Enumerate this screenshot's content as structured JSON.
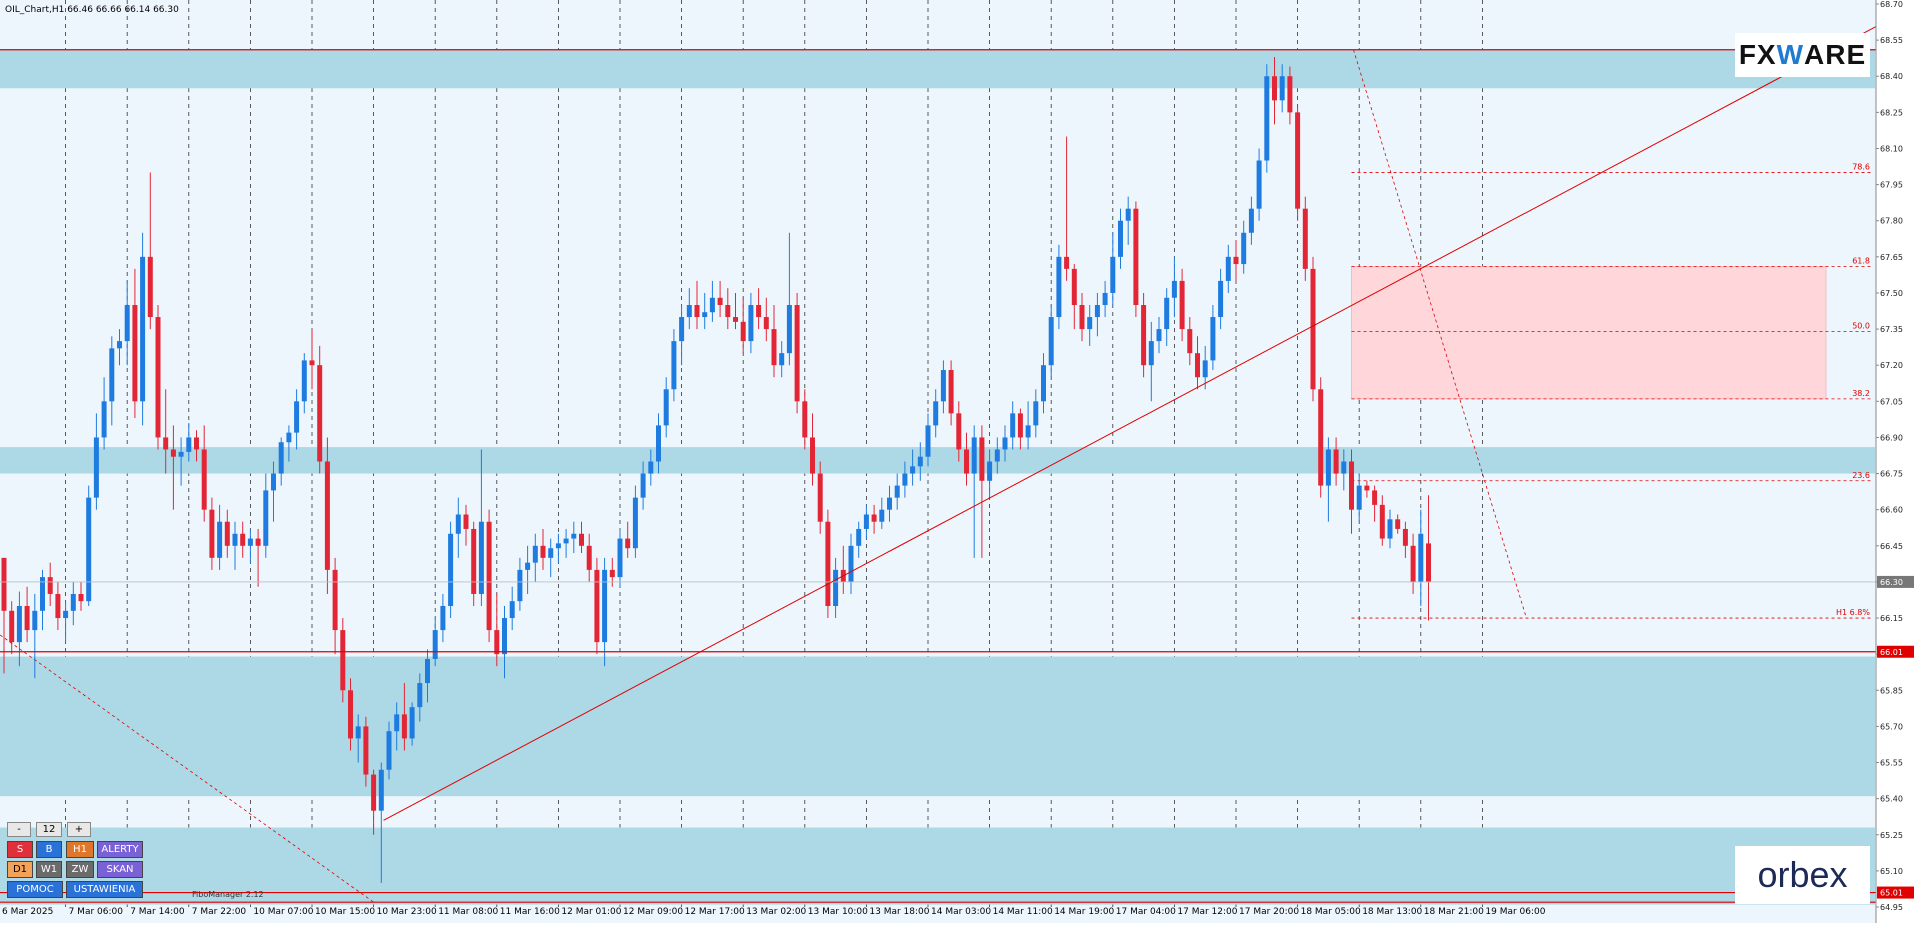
{
  "header": {
    "info": "OIL_Chart,H1  66.46 66.66 66.14 66.30"
  },
  "footer": {
    "fibo_manager": "FiboManager 2.12"
  },
  "brands": {
    "fxware_left": "FX",
    "fxware_mid": "W",
    "fxware_right": "ARE",
    "orbex": "orbex"
  },
  "controls": {
    "minus": "-",
    "count": "12",
    "plus": "+",
    "row1": [
      "S",
      "B",
      "H1",
      "ALERTY"
    ],
    "row2": [
      "D1",
      "W1",
      "ZW",
      "SKAN"
    ],
    "row3": [
      "POMOC",
      "USTAWIENIA"
    ]
  },
  "colors": {
    "bull": "#1e7be0",
    "bear": "#e32636",
    "zone": "#add8e6",
    "fibo_zone": "#ffd6da",
    "line": "#e00000",
    "grid": "#333333",
    "bg": "#eef6fd"
  },
  "chart_data": {
    "type": "candlestick",
    "symbol": "OIL",
    "timeframe": "H1",
    "ylim": [
      64.95,
      68.7
    ],
    "y_ticks": [
      68.7,
      68.55,
      68.4,
      68.25,
      68.1,
      67.95,
      67.8,
      67.65,
      67.5,
      67.35,
      67.2,
      67.05,
      66.9,
      66.75,
      66.6,
      66.45,
      66.3,
      66.15,
      66.0,
      65.85,
      65.7,
      65.55,
      65.4,
      65.25,
      65.1,
      64.95
    ],
    "x_ticks": [
      "6 Mar 2025",
      "7 Mar 06:00",
      "7 Mar 14:00",
      "7 Mar 22:00",
      "10 Mar 07:00",
      "10 Mar 15:00",
      "10 Mar 23:00",
      "11 Mar 08:00",
      "11 Mar 16:00",
      "12 Mar 01:00",
      "12 Mar 09:00",
      "12 Mar 17:00",
      "13 Mar 02:00",
      "13 Mar 10:00",
      "13 Mar 18:00",
      "14 Mar 03:00",
      "14 Mar 11:00",
      "14 Mar 19:00",
      "17 Mar 04:00",
      "17 Mar 12:00",
      "17 Mar 20:00",
      "18 Mar 05:00",
      "18 Mar 13:00",
      "18 Mar 21:00",
      "19 Mar 06:00"
    ],
    "current_price": "66.30",
    "price_labels": [
      "66.01",
      "65.01"
    ],
    "horizontal_lines": [
      68.51,
      66.01,
      65.01,
      64.97
    ],
    "support_resistance_zones": [
      [
        68.35,
        68.51
      ],
      [
        66.75,
        66.86
      ],
      [
        65.41,
        65.99
      ],
      [
        64.96,
        65.28
      ]
    ],
    "trendline": {
      "from": [
        "10 Mar 23:00",
        65.31
      ],
      "to": [
        "19 Mar 06:00",
        67.98
      ]
    },
    "fibonacci": {
      "levels": [
        {
          "label": "78.6",
          "price": 68.0
        },
        {
          "label": "61.8",
          "price": 67.61
        },
        {
          "label": "50.0",
          "price": 67.34
        },
        {
          "label": "38.2",
          "price": 67.06
        },
        {
          "label": "23.6",
          "price": 66.72
        },
        {
          "label": "H1 6.8%",
          "price": 66.15
        }
      ],
      "zone": [
        67.06,
        67.61
      ],
      "swing_high": 68.51,
      "swing_low": 66.15
    },
    "candles_ohlc": [
      [
        66.4,
        66.28,
        65.92,
        66.18
      ],
      [
        66.18,
        66.22,
        66.0,
        66.05
      ],
      [
        66.05,
        66.26,
        65.95,
        66.2
      ],
      [
        66.2,
        66.28,
        66.05,
        66.1
      ],
      [
        66.1,
        66.25,
        65.9,
        66.18
      ],
      [
        66.18,
        66.35,
        66.1,
        66.32
      ],
      [
        66.32,
        66.38,
        66.2,
        66.25
      ],
      [
        66.25,
        66.3,
        66.1,
        66.15
      ],
      [
        66.15,
        66.22,
        66.05,
        66.18
      ],
      [
        66.18,
        66.3,
        66.12,
        66.25
      ],
      [
        66.25,
        66.3,
        66.18,
        66.22
      ],
      [
        66.22,
        66.7,
        66.2,
        66.65
      ],
      [
        66.65,
        67.0,
        66.6,
        66.9
      ],
      [
        66.9,
        67.15,
        66.85,
        67.05
      ],
      [
        67.05,
        67.32,
        66.95,
        67.27
      ],
      [
        67.27,
        67.35,
        67.2,
        67.3
      ],
      [
        67.3,
        67.55,
        67.2,
        67.45
      ],
      [
        67.45,
        67.6,
        66.98,
        67.05
      ],
      [
        67.05,
        67.75,
        66.95,
        67.65
      ],
      [
        67.65,
        68.0,
        67.35,
        67.4
      ],
      [
        67.4,
        67.45,
        66.85,
        66.9
      ],
      [
        66.9,
        67.1,
        66.75,
        66.85
      ],
      [
        66.85,
        66.95,
        66.6,
        66.82
      ],
      [
        66.82,
        66.9,
        66.7,
        66.84
      ],
      [
        66.84,
        66.96,
        66.8,
        66.9
      ],
      [
        66.9,
        66.93,
        66.8,
        66.85
      ],
      [
        66.85,
        66.95,
        66.55,
        66.6
      ],
      [
        66.6,
        66.65,
        66.35,
        66.4
      ],
      [
        66.4,
        66.62,
        66.35,
        66.55
      ],
      [
        66.55,
        66.6,
        66.4,
        66.45
      ],
      [
        66.45,
        66.55,
        66.35,
        66.5
      ],
      [
        66.5,
        66.55,
        66.4,
        66.45
      ],
      [
        66.45,
        66.52,
        66.38,
        66.48
      ],
      [
        66.48,
        66.52,
        66.28,
        66.45
      ],
      [
        66.45,
        66.75,
        66.4,
        66.68
      ],
      [
        66.68,
        66.8,
        66.55,
        66.75
      ],
      [
        66.75,
        66.9,
        66.7,
        66.88
      ],
      [
        66.88,
        66.95,
        66.8,
        66.92
      ],
      [
        66.92,
        67.1,
        66.85,
        67.05
      ],
      [
        67.05,
        67.25,
        67.0,
        67.22
      ],
      [
        67.22,
        67.35,
        67.1,
        67.2
      ],
      [
        67.2,
        67.28,
        66.75,
        66.8
      ],
      [
        66.8,
        66.9,
        66.25,
        66.35
      ],
      [
        66.35,
        66.4,
        66.0,
        66.1
      ],
      [
        66.1,
        66.15,
        65.8,
        65.85
      ],
      [
        65.85,
        65.9,
        65.6,
        65.65
      ],
      [
        65.65,
        65.75,
        65.55,
        65.7
      ],
      [
        65.7,
        65.74,
        65.45,
        65.5
      ],
      [
        65.5,
        65.52,
        65.25,
        65.35
      ],
      [
        65.35,
        65.55,
        65.05,
        65.52
      ],
      [
        65.52,
        65.72,
        65.48,
        65.68
      ],
      [
        65.68,
        65.8,
        65.6,
        65.75
      ],
      [
        65.75,
        65.88,
        65.6,
        65.65
      ],
      [
        65.65,
        65.8,
        65.62,
        65.78
      ],
      [
        65.78,
        65.92,
        65.72,
        65.88
      ],
      [
        65.88,
        66.02,
        65.8,
        65.98
      ],
      [
        65.98,
        66.15,
        65.95,
        66.1
      ],
      [
        66.1,
        66.25,
        66.05,
        66.2
      ],
      [
        66.2,
        66.55,
        66.15,
        66.5
      ],
      [
        66.5,
        66.65,
        66.4,
        66.58
      ],
      [
        66.58,
        66.62,
        66.45,
        66.52
      ],
      [
        66.52,
        66.55,
        66.2,
        66.25
      ],
      [
        66.25,
        66.85,
        66.2,
        66.55
      ],
      [
        66.55,
        66.6,
        66.05,
        66.1
      ],
      [
        66.1,
        66.25,
        65.95,
        66.0
      ],
      [
        66.0,
        66.2,
        65.9,
        66.15
      ],
      [
        66.15,
        66.28,
        66.1,
        66.22
      ],
      [
        66.22,
        66.4,
        66.18,
        66.35
      ],
      [
        66.35,
        66.45,
        66.25,
        66.38
      ],
      [
        66.38,
        66.5,
        66.3,
        66.45
      ],
      [
        66.45,
        66.52,
        66.35,
        66.4
      ],
      [
        66.4,
        66.48,
        66.32,
        66.44
      ],
      [
        66.44,
        66.5,
        66.38,
        66.46
      ],
      [
        66.46,
        66.52,
        66.4,
        66.48
      ],
      [
        66.48,
        66.55,
        66.42,
        66.5
      ],
      [
        66.5,
        66.55,
        66.42,
        66.45
      ],
      [
        66.45,
        66.5,
        66.3,
        66.35
      ],
      [
        66.35,
        66.4,
        66.0,
        66.05
      ],
      [
        66.05,
        66.4,
        65.95,
        66.35
      ],
      [
        66.35,
        66.4,
        66.28,
        66.32
      ],
      [
        66.32,
        66.52,
        66.28,
        66.48
      ],
      [
        66.48,
        66.55,
        66.4,
        66.44
      ],
      [
        66.44,
        66.7,
        66.4,
        66.65
      ],
      [
        66.65,
        66.8,
        66.6,
        66.75
      ],
      [
        66.75,
        66.85,
        66.7,
        66.8
      ],
      [
        66.8,
        67.0,
        66.75,
        66.95
      ],
      [
        66.95,
        67.15,
        66.9,
        67.1
      ],
      [
        67.1,
        67.35,
        67.05,
        67.3
      ],
      [
        67.3,
        67.45,
        67.2,
        67.4
      ],
      [
        67.4,
        67.52,
        67.35,
        67.45
      ],
      [
        67.45,
        67.55,
        67.35,
        67.4
      ],
      [
        67.4,
        67.5,
        67.35,
        67.42
      ],
      [
        67.42,
        67.55,
        67.38,
        67.48
      ],
      [
        67.48,
        67.55,
        67.4,
        67.45
      ],
      [
        67.45,
        67.52,
        67.35,
        67.4
      ],
      [
        67.4,
        67.5,
        67.35,
        67.38
      ],
      [
        67.38,
        67.48,
        67.25,
        67.3
      ],
      [
        67.3,
        67.5,
        67.25,
        67.45
      ],
      [
        67.45,
        67.52,
        67.35,
        67.4
      ],
      [
        67.4,
        67.48,
        67.3,
        67.35
      ],
      [
        67.35,
        67.45,
        67.15,
        67.2
      ],
      [
        67.2,
        67.3,
        67.15,
        67.25
      ],
      [
        67.25,
        67.75,
        67.2,
        67.45
      ],
      [
        67.45,
        67.5,
        67.0,
        67.05
      ],
      [
        67.05,
        67.1,
        66.85,
        66.9
      ],
      [
        66.9,
        67.0,
        66.7,
        66.75
      ],
      [
        66.75,
        66.8,
        66.5,
        66.55
      ],
      [
        66.55,
        66.6,
        66.15,
        66.2
      ],
      [
        66.2,
        66.4,
        66.15,
        66.35
      ],
      [
        66.35,
        66.45,
        66.25,
        66.3
      ],
      [
        66.3,
        66.5,
        66.25,
        66.45
      ],
      [
        66.45,
        66.55,
        66.4,
        66.52
      ],
      [
        66.52,
        66.62,
        66.48,
        66.58
      ],
      [
        66.58,
        66.62,
        66.5,
        66.55
      ],
      [
        66.55,
        66.65,
        66.52,
        66.6
      ],
      [
        66.6,
        66.7,
        66.55,
        66.65
      ],
      [
        66.65,
        66.75,
        66.6,
        66.7
      ],
      [
        66.7,
        66.8,
        66.65,
        66.75
      ],
      [
        66.75,
        66.85,
        66.7,
        66.78
      ],
      [
        66.78,
        66.88,
        66.72,
        66.82
      ],
      [
        66.82,
        67.0,
        66.78,
        66.95
      ],
      [
        66.95,
        67.1,
        66.9,
        67.05
      ],
      [
        67.05,
        67.22,
        67.0,
        67.18
      ],
      [
        67.18,
        67.22,
        66.95,
        67.0
      ],
      [
        67.0,
        67.05,
        66.8,
        66.85
      ],
      [
        66.85,
        66.92,
        66.7,
        66.75
      ],
      [
        66.75,
        66.95,
        66.4,
        66.9
      ],
      [
        66.9,
        66.95,
        66.4,
        66.72
      ],
      [
        66.72,
        66.85,
        66.65,
        66.8
      ],
      [
        66.8,
        66.9,
        66.75,
        66.85
      ],
      [
        66.85,
        66.95,
        66.8,
        66.9
      ],
      [
        66.9,
        67.05,
        66.85,
        67.0
      ],
      [
        67.0,
        67.02,
        66.85,
        66.9
      ],
      [
        66.9,
        67.05,
        66.85,
        66.95
      ],
      [
        66.95,
        67.1,
        66.9,
        67.05
      ],
      [
        67.05,
        67.25,
        67.0,
        67.2
      ],
      [
        67.2,
        67.45,
        67.15,
        67.4
      ],
      [
        67.4,
        67.7,
        67.35,
        67.65
      ],
      [
        67.65,
        68.15,
        67.55,
        67.6
      ],
      [
        67.6,
        67.62,
        67.35,
        67.45
      ],
      [
        67.45,
        67.5,
        67.3,
        67.35
      ],
      [
        67.35,
        67.45,
        67.28,
        67.4
      ],
      [
        67.4,
        67.5,
        67.32,
        67.45
      ],
      [
        67.45,
        67.55,
        67.4,
        67.5
      ],
      [
        67.5,
        67.75,
        67.45,
        67.65
      ],
      [
        67.65,
        67.85,
        67.6,
        67.8
      ],
      [
        67.8,
        67.9,
        67.7,
        67.85
      ],
      [
        67.85,
        67.88,
        67.4,
        67.45
      ],
      [
        67.45,
        67.5,
        67.15,
        67.2
      ],
      [
        67.2,
        67.38,
        67.05,
        67.3
      ],
      [
        67.3,
        67.4,
        67.25,
        67.35
      ],
      [
        67.35,
        67.52,
        67.28,
        67.48
      ],
      [
        67.48,
        67.65,
        67.4,
        67.55
      ],
      [
        67.55,
        67.6,
        67.3,
        67.35
      ],
      [
        67.35,
        67.4,
        67.2,
        67.25
      ],
      [
        67.25,
        67.32,
        67.1,
        67.15
      ],
      [
        67.15,
        67.28,
        67.1,
        67.22
      ],
      [
        67.22,
        67.45,
        67.18,
        67.4
      ],
      [
        67.4,
        67.6,
        67.35,
        67.55
      ],
      [
        67.55,
        67.7,
        67.5,
        67.65
      ],
      [
        67.65,
        67.72,
        67.55,
        67.62
      ],
      [
        67.62,
        67.8,
        67.58,
        67.75
      ],
      [
        67.75,
        67.9,
        67.7,
        67.85
      ],
      [
        67.85,
        68.1,
        67.8,
        68.05
      ],
      [
        68.05,
        68.45,
        68.0,
        68.4
      ],
      [
        68.4,
        68.48,
        68.2,
        68.3
      ],
      [
        68.3,
        68.45,
        68.25,
        68.4
      ],
      [
        68.4,
        68.44,
        68.2,
        68.25
      ],
      [
        68.25,
        68.28,
        67.8,
        67.85
      ],
      [
        67.85,
        67.9,
        67.55,
        67.6
      ],
      [
        67.6,
        67.65,
        67.05,
        67.1
      ],
      [
        67.1,
        67.15,
        66.65,
        66.7
      ],
      [
        66.7,
        66.9,
        66.55,
        66.85
      ],
      [
        66.85,
        66.9,
        66.7,
        66.75
      ],
      [
        66.75,
        66.85,
        66.68,
        66.8
      ],
      [
        66.8,
        66.85,
        66.5,
        66.6
      ],
      [
        66.6,
        66.75,
        66.55,
        66.7
      ],
      [
        66.7,
        66.72,
        66.65,
        66.68
      ],
      [
        66.68,
        66.7,
        66.55,
        66.62
      ],
      [
        66.62,
        66.66,
        66.45,
        66.48
      ],
      [
        66.48,
        66.6,
        66.44,
        66.56
      ],
      [
        66.56,
        66.58,
        66.5,
        66.52
      ],
      [
        66.52,
        66.55,
        66.4,
        66.45
      ],
      [
        66.45,
        66.5,
        66.25,
        66.3
      ],
      [
        66.3,
        66.6,
        66.2,
        66.5
      ],
      [
        66.46,
        66.66,
        66.14,
        66.3
      ]
    ]
  }
}
